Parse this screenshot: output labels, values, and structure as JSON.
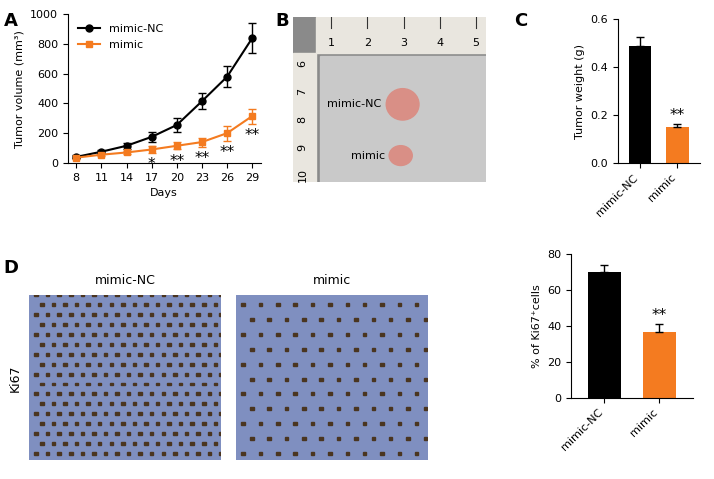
{
  "chart_data": [
    {
      "type": "line",
      "panel_label": "A",
      "x_label": "Days",
      "y_label": "Tumor volume (mm³)",
      "x": [
        8,
        11,
        14,
        17,
        20,
        23,
        26,
        29
      ],
      "xlim": [
        7,
        30
      ],
      "xticks": [
        8,
        11,
        14,
        17,
        20,
        23,
        26,
        29
      ],
      "ylim": [
        0,
        1000
      ],
      "yticks": [
        0,
        200,
        400,
        600,
        800,
        1000
      ],
      "legend": "upper left",
      "series": [
        {
          "name": "mimic-NC",
          "color": "#000000",
          "marker": "circle",
          "values": [
            40,
            75,
            115,
            175,
            255,
            415,
            580,
            840
          ],
          "errors": [
            10,
            12,
            20,
            35,
            45,
            55,
            70,
            100
          ]
        },
        {
          "name": "mimic",
          "color": "#f47b20",
          "marker": "square",
          "values": [
            35,
            55,
            70,
            90,
            115,
            140,
            200,
            315
          ],
          "errors": [
            8,
            10,
            12,
            25,
            25,
            30,
            50,
            50
          ],
          "significance": [
            null,
            null,
            null,
            "*",
            "**",
            "**",
            "**",
            "**"
          ]
        }
      ]
    },
    {
      "type": "bar",
      "panel_label": "C",
      "y_label": "Tumor weight (g)",
      "categories": [
        "mimic-NC",
        "mimic"
      ],
      "values": [
        0.49,
        0.15
      ],
      "errors": [
        0.035,
        0.012
      ],
      "colors": [
        "#000000",
        "#f47b20"
      ],
      "significance": [
        null,
        "**"
      ],
      "ylim": [
        0,
        0.6
      ],
      "yticks": [
        {
          "value": 0,
          "label": "0.0"
        },
        0.2,
        0.4,
        0.6
      ]
    },
    {
      "type": "bar",
      "y_label": "% of Ki67⁺cells",
      "categories": [
        "mimic-NC",
        "mimic"
      ],
      "values": [
        70,
        36.5
      ],
      "errors": [
        4,
        4.5
      ],
      "colors": [
        "#000000",
        "#f47b20"
      ],
      "significance": [
        null,
        "**"
      ],
      "ylim": [
        0,
        80
      ],
      "yticks": [
        0,
        20,
        40,
        60,
        80
      ]
    }
  ],
  "image_panels": [
    {
      "panel_label": "B",
      "ruler_top": [
        1,
        2,
        3,
        4,
        5
      ],
      "ruler_left": [
        6,
        7,
        8,
        9,
        10
      ],
      "labels": [
        "mimic-NC",
        "mimic"
      ]
    },
    {
      "panel_label": "D",
      "row_label": "Ki67",
      "labels": [
        "mimic-NC",
        "mimic"
      ]
    }
  ]
}
